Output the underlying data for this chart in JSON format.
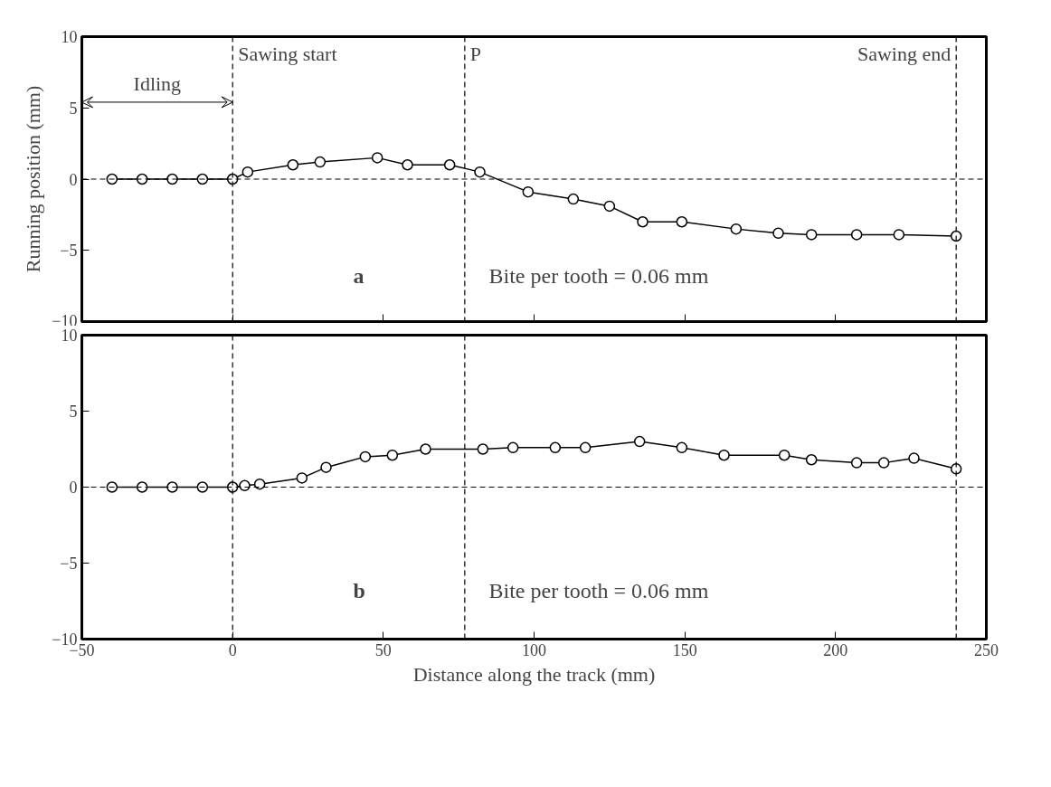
{
  "chart_data": [
    {
      "type": "line",
      "ylabel": "Running position (mm)",
      "tick_labels": "y",
      "marker": "circle",
      "line_style": "solid",
      "grid": false,
      "xlim": [
        -50,
        250
      ],
      "xticks": [
        -50,
        0,
        50,
        100,
        150,
        200,
        250
      ],
      "ylim": [
        -10,
        10
      ],
      "yticks": [
        -10,
        -5,
        0,
        5,
        10
      ],
      "series": [
        {
          "color": "#000000",
          "x": [
            -40,
            -30,
            -20,
            -10,
            0,
            5,
            20,
            29,
            48,
            58,
            72,
            82,
            98,
            113,
            125,
            136,
            149,
            167,
            181,
            192,
            207,
            221,
            240
          ],
          "values": [
            0,
            0,
            0,
            0,
            0,
            0.5,
            1.0,
            1.2,
            1.5,
            1.0,
            1.0,
            0.5,
            -0.9,
            -1.4,
            -1.9,
            -3.0,
            -3.0,
            -3.5,
            -3.8,
            -3.9,
            -3.9,
            -3.9,
            -4.0
          ]
        }
      ],
      "ref_lines": [
        {
          "axis": "x",
          "value": 0,
          "label": "Sawing start",
          "line_style": "dashed",
          "color": "#000000"
        },
        {
          "axis": "x",
          "value": 77,
          "label": "P",
          "line_style": "dashed",
          "color": "#000000"
        },
        {
          "axis": "x",
          "value": 240,
          "label": "Sawing end",
          "line_style": "dashed",
          "color": "#000000"
        },
        {
          "axis": "y",
          "value": 0,
          "line_style": "dashed",
          "color": "#000000"
        }
      ],
      "annotations": [
        {
          "text": "Idling",
          "x": 0,
          "y": 5.4
        },
        "a",
        "Bite per tooth = 0.06 mm"
      ]
    },
    {
      "type": "line",
      "xlabel": "Distance along the track (mm)",
      "marker": "circle",
      "line_style": "solid",
      "grid": false,
      "xlim": [
        -50,
        250
      ],
      "xticks": [
        -50,
        0,
        50,
        100,
        150,
        200,
        250
      ],
      "ylim": [
        -10,
        10
      ],
      "yticks": [
        -10,
        -5,
        0,
        5,
        10
      ],
      "series": [
        {
          "color": "#000000",
          "x": [
            -40,
            -30,
            -20,
            -10,
            0,
            4,
            9,
            23,
            31,
            44,
            53,
            64,
            83,
            93,
            107,
            117,
            135,
            149,
            163,
            183,
            192,
            207,
            216,
            226,
            240
          ],
          "values": [
            0,
            0,
            0,
            0,
            0,
            0.1,
            0.2,
            0.6,
            1.3,
            2.0,
            2.1,
            2.5,
            2.5,
            2.6,
            2.6,
            2.6,
            3.0,
            2.6,
            2.1,
            2.1,
            1.8,
            1.6,
            1.6,
            1.9,
            1.2
          ]
        }
      ],
      "ref_lines": [
        {
          "axis": "x",
          "value": 0,
          "line_style": "dashed",
          "color": "#000000"
        },
        {
          "axis": "x",
          "value": 77,
          "line_style": "dashed",
          "color": "#000000"
        },
        {
          "axis": "x",
          "value": 240,
          "line_style": "dashed",
          "color": "#000000"
        },
        {
          "axis": "y",
          "value": 0,
          "line_style": "dashed",
          "color": "#000000"
        }
      ],
      "annotations": [
        "b",
        "Bite per tooth = 0.06 mm"
      ]
    }
  ]
}
